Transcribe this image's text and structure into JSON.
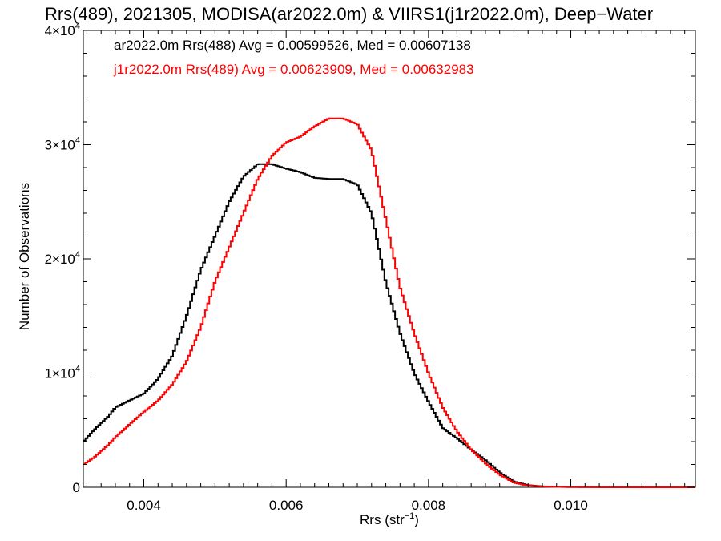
{
  "chart_data": {
    "type": "line",
    "title": "Rrs(489), 2021305, MODISA(ar2022.0m) & VIIRS1(j1r2022.0m), Deep−Water",
    "xlabel": "Rrs (str⁻¹)",
    "ylabel": "Number of Observations",
    "xlim": [
      0.00315,
      0.01175
    ],
    "ylim": [
      0,
      40000
    ],
    "x_ticks": [
      0.004,
      0.006,
      0.008,
      0.01
    ],
    "x_tick_labels": [
      "0.004",
      "0.006",
      "0.008",
      "0.010"
    ],
    "y_ticks": [
      0,
      10000,
      20000,
      30000,
      40000
    ],
    "y_tick_labels": [
      {
        "mantissa": "0",
        "exp": ""
      },
      {
        "mantissa": "1×10",
        "exp": "4"
      },
      {
        "mantissa": "2×10",
        "exp": "4"
      },
      {
        "mantissa": "3×10",
        "exp": "4"
      },
      {
        "mantissa": "4×10",
        "exp": "4"
      }
    ],
    "grid": false,
    "legend_position": "top-left",
    "series": [
      {
        "name": "ar2022.0m Rrs(488)",
        "legend_text": "ar2022.0m Rrs(488) Avg = 0.00599526, Med = 0.00607138",
        "color": "#000000",
        "style": "step",
        "points": [
          [
            0.00315,
            4000
          ],
          [
            0.0033,
            5000
          ],
          [
            0.0035,
            6200
          ],
          [
            0.0036,
            7000
          ],
          [
            0.0038,
            7600
          ],
          [
            0.004,
            8200
          ],
          [
            0.0042,
            9500
          ],
          [
            0.0044,
            11500
          ],
          [
            0.0046,
            15000
          ],
          [
            0.0048,
            19000
          ],
          [
            0.005,
            22000
          ],
          [
            0.0052,
            25000
          ],
          [
            0.0054,
            27200
          ],
          [
            0.0056,
            28300
          ],
          [
            0.0058,
            28300
          ],
          [
            0.006,
            27900
          ],
          [
            0.0062,
            27600
          ],
          [
            0.0064,
            27100
          ],
          [
            0.0066,
            27000
          ],
          [
            0.0068,
            27000
          ],
          [
            0.007,
            26500
          ],
          [
            0.0072,
            24000
          ],
          [
            0.0074,
            18000
          ],
          [
            0.0076,
            13500
          ],
          [
            0.0078,
            10000
          ],
          [
            0.008,
            7500
          ],
          [
            0.0082,
            5200
          ],
          [
            0.0084,
            4300
          ],
          [
            0.0086,
            3300
          ],
          [
            0.0088,
            2400
          ],
          [
            0.009,
            1300
          ],
          [
            0.0092,
            500
          ],
          [
            0.0094,
            180
          ],
          [
            0.0096,
            80
          ],
          [
            0.0098,
            40
          ],
          [
            0.01,
            25
          ],
          [
            0.0105,
            10
          ],
          [
            0.011,
            5
          ],
          [
            0.01175,
            3
          ]
        ]
      },
      {
        "name": "j1r2022.0m Rrs(489)",
        "legend_text": "j1r2022.0m Rrs(489) Avg = 0.00623909, Med = 0.00632983",
        "color": "#ff0000",
        "style": "step",
        "points": [
          [
            0.00315,
            2000
          ],
          [
            0.0033,
            2600
          ],
          [
            0.0035,
            3700
          ],
          [
            0.0036,
            4400
          ],
          [
            0.0038,
            5500
          ],
          [
            0.004,
            6600
          ],
          [
            0.0042,
            7600
          ],
          [
            0.0044,
            9000
          ],
          [
            0.0046,
            11000
          ],
          [
            0.0048,
            14000
          ],
          [
            0.005,
            18000
          ],
          [
            0.0052,
            21000
          ],
          [
            0.0054,
            24000
          ],
          [
            0.0056,
            27000
          ],
          [
            0.0058,
            29000
          ],
          [
            0.006,
            30200
          ],
          [
            0.0062,
            30700
          ],
          [
            0.0064,
            31600
          ],
          [
            0.0066,
            32300
          ],
          [
            0.0068,
            32300
          ],
          [
            0.007,
            31800
          ],
          [
            0.0072,
            29500
          ],
          [
            0.0074,
            23500
          ],
          [
            0.0076,
            17500
          ],
          [
            0.0078,
            13500
          ],
          [
            0.008,
            10000
          ],
          [
            0.0082,
            7000
          ],
          [
            0.0084,
            4900
          ],
          [
            0.0086,
            3300
          ],
          [
            0.0088,
            2100
          ],
          [
            0.009,
            1100
          ],
          [
            0.0092,
            400
          ],
          [
            0.0094,
            150
          ],
          [
            0.0096,
            70
          ],
          [
            0.0098,
            35
          ],
          [
            0.01,
            20
          ],
          [
            0.0105,
            8
          ],
          [
            0.011,
            4
          ],
          [
            0.01175,
            2
          ]
        ]
      }
    ]
  }
}
